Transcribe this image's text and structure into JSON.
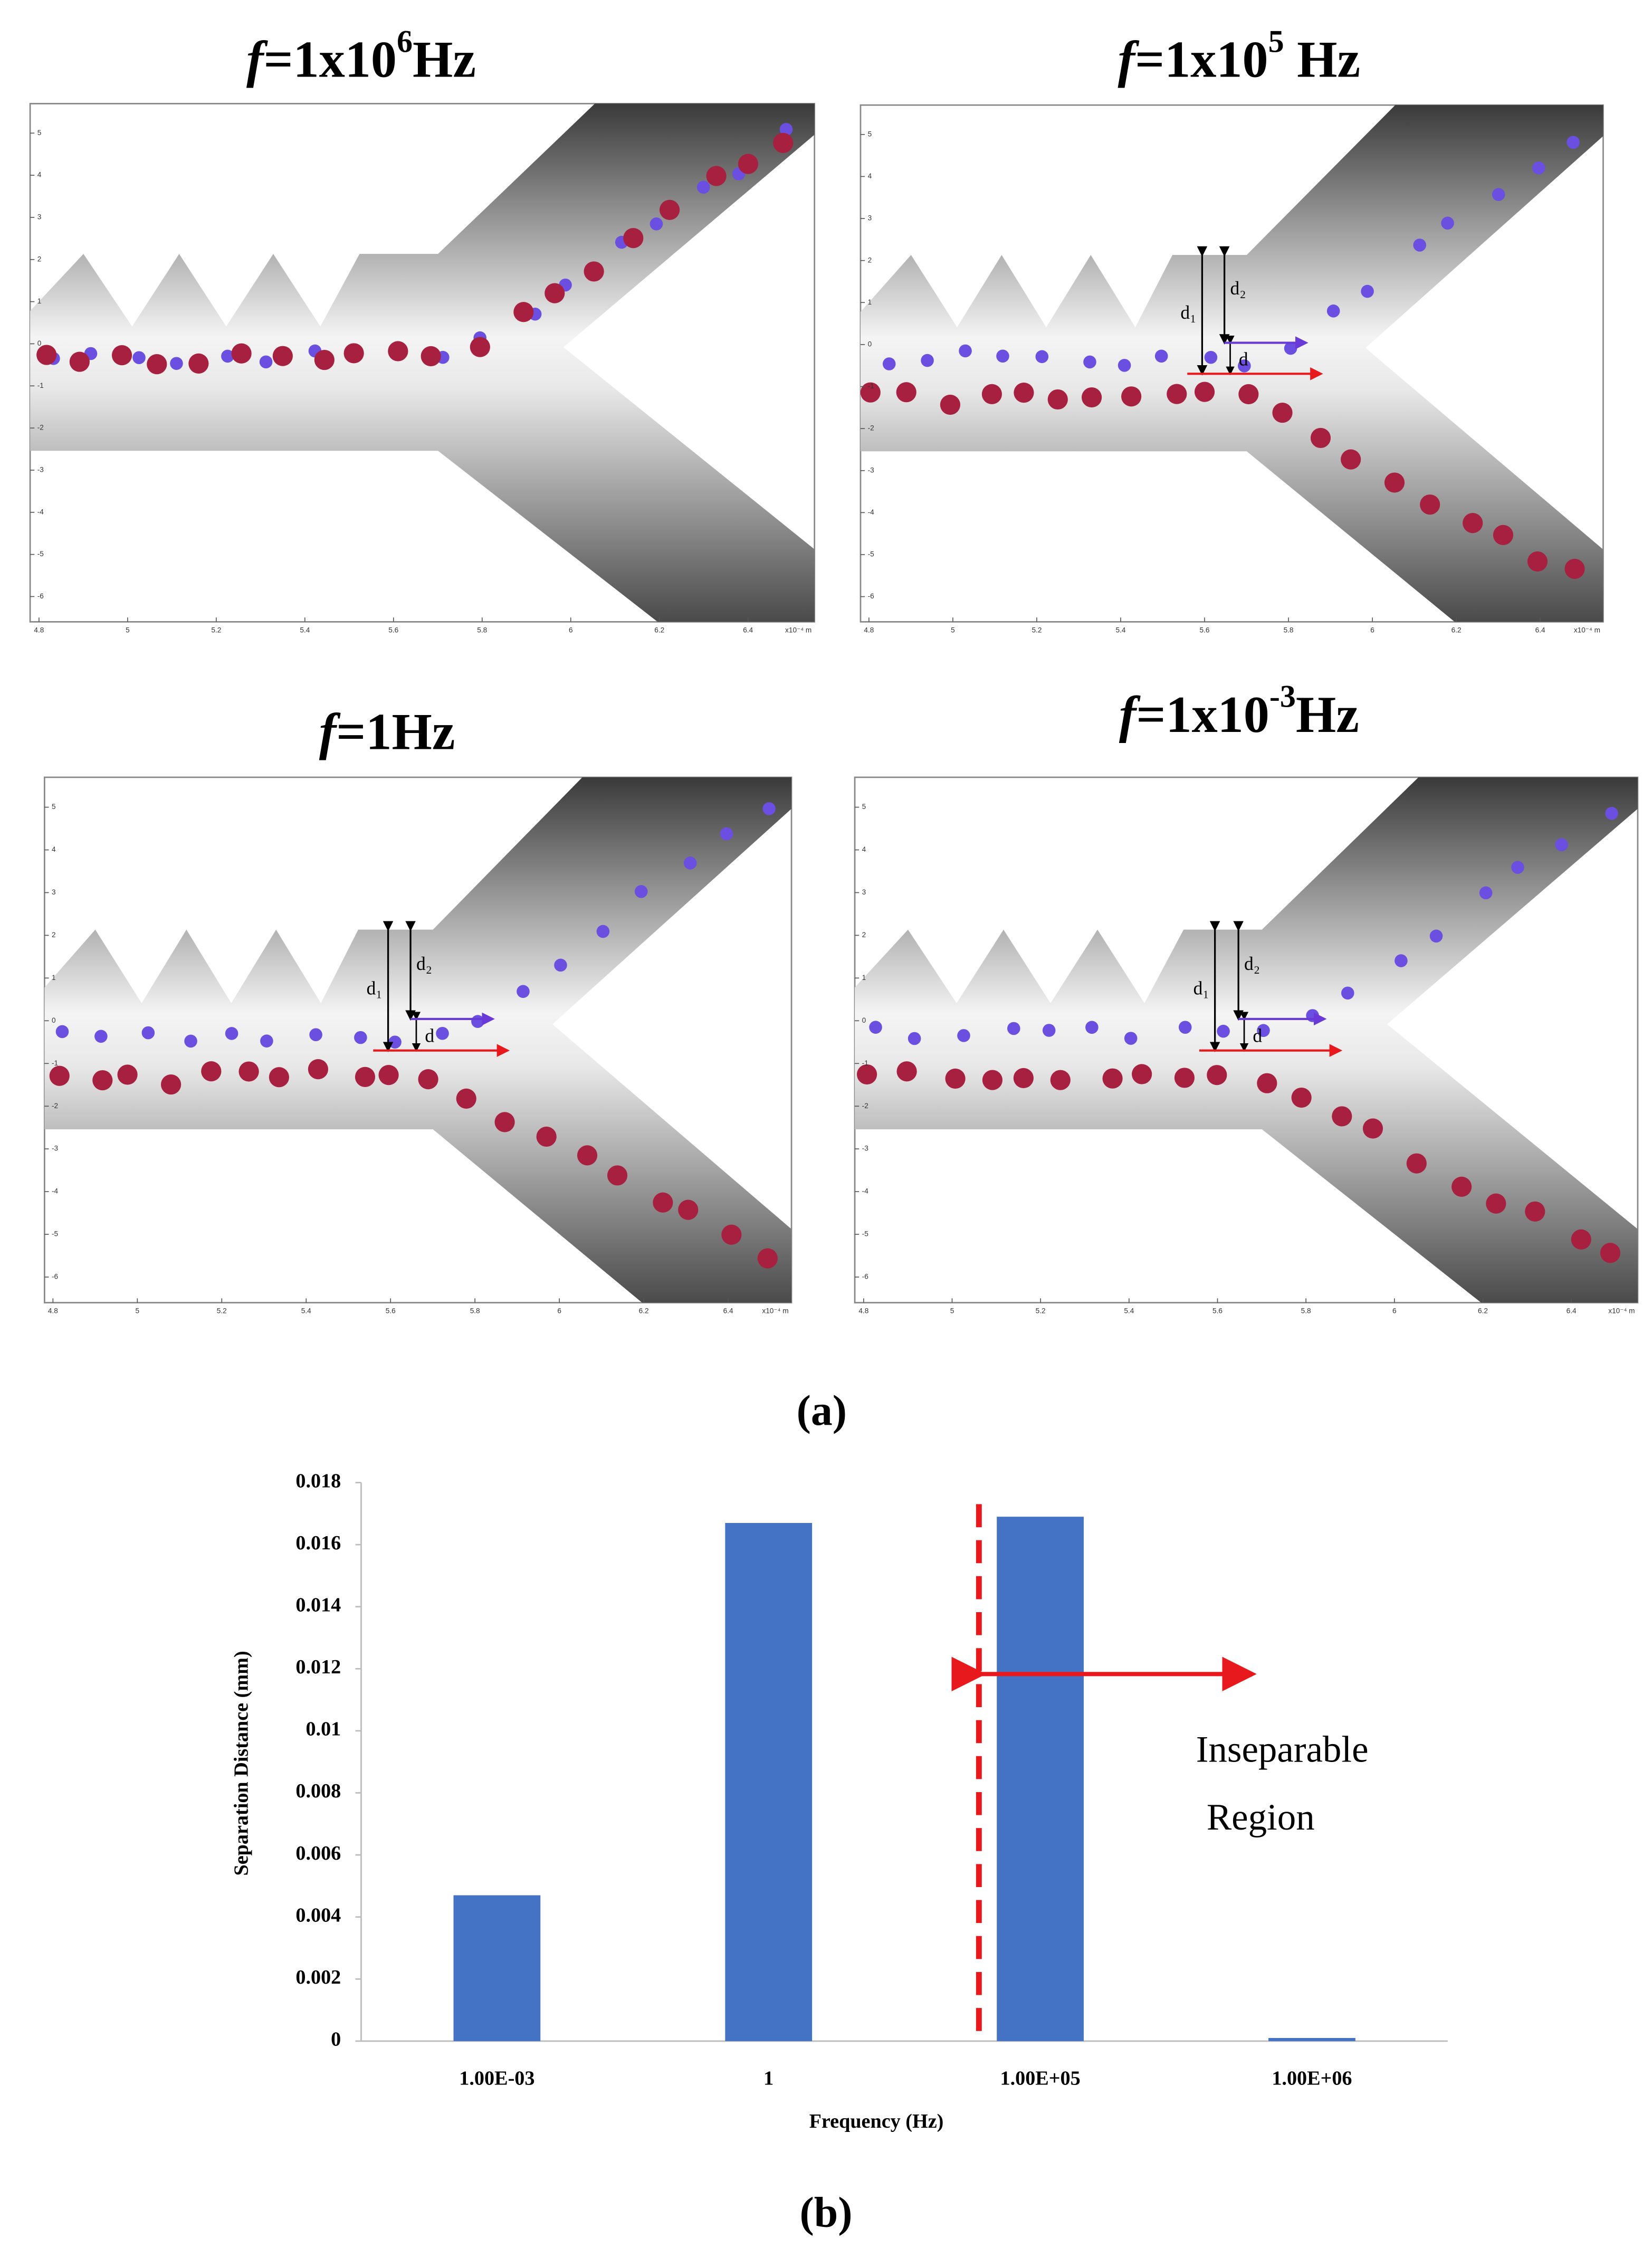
{
  "figure_labels": [
    "(a)",
    "(b)"
  ],
  "panels": [
    {
      "title": {
        "variable": "f",
        "text": "=1x10",
        "exponent": "6",
        "unit": "Hz"
      },
      "separated": false
    },
    {
      "title": {
        "variable": "f",
        "text": "=1x10",
        "exponent": "5",
        "unit": " Hz"
      },
      "separated": true,
      "labels": [
        "d₁",
        "d₂",
        "d"
      ]
    },
    {
      "title": {
        "variable": "f",
        "text": "=1Hz"
      },
      "separated": true,
      "labels": [
        "d₁",
        "d₂",
        "d"
      ]
    },
    {
      "title": {
        "variable": "f",
        "text": "=1x10",
        "exponent": "-3",
        "unit": "Hz"
      },
      "separated": true,
      "labels": [
        "d₁",
        "d₂",
        "d"
      ]
    }
  ],
  "panel_axes": {
    "xlim": [
      4.78,
      6.55
    ],
    "xticks": [
      4.8,
      5,
      5.2,
      5.4,
      5.6,
      5.8,
      6,
      6.2,
      6.4
    ],
    "x_unit": "x10⁻⁴ m",
    "ylim": [
      -6.6,
      5.7
    ],
    "yticks": [
      5,
      4,
      3,
      2,
      1,
      0,
      -1,
      -2,
      -3,
      -4,
      -5,
      -6
    ]
  },
  "chart_data": {
    "type": "bar",
    "categories": [
      "1.00E-03",
      "1",
      "1.00E+05",
      "1.00E+06"
    ],
    "values": [
      0.0047,
      0.0167,
      0.0169,
      0.0001
    ],
    "color": "#4472c4",
    "ylim": [
      0,
      0.018
    ],
    "yticks": [
      0,
      0.002,
      0.004,
      0.006,
      0.008,
      0.01,
      0.012,
      0.014,
      0.016,
      0.018
    ],
    "xlabel": "Frequency (Hz)",
    "ylabel": "Separation Distance (mm)",
    "annotation": [
      "Inseparable",
      "Region"
    ],
    "threshold_color": "#e8191c"
  }
}
